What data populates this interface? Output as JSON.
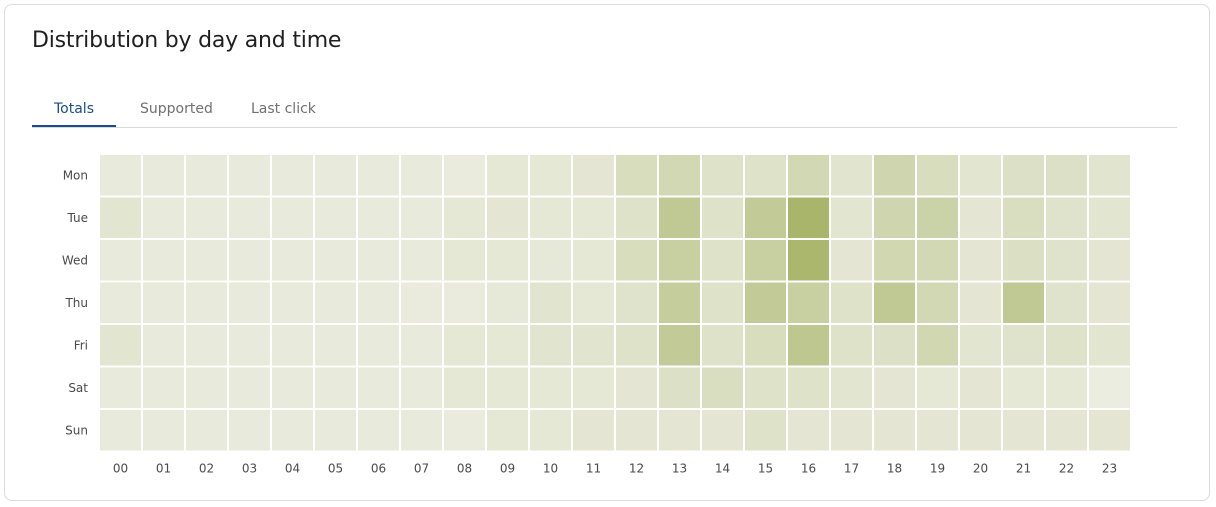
{
  "card": {
    "title": "Distribution by day and time"
  },
  "tabs": [
    {
      "label": "Totals",
      "active": true
    },
    {
      "label": "Supported",
      "active": false
    },
    {
      "label": "Last click",
      "active": false
    }
  ],
  "colors": {
    "accent": "#1a4d8f",
    "heat_low": "#eeefe5",
    "heat_high": "#a4b263"
  },
  "chart_data": {
    "type": "heatmap",
    "rows": [
      "Mon",
      "Tue",
      "Wed",
      "Thu",
      "Fri",
      "Sat",
      "Sun"
    ],
    "columns": [
      "00",
      "01",
      "02",
      "03",
      "04",
      "05",
      "06",
      "07",
      "08",
      "09",
      "10",
      "11",
      "12",
      "13",
      "14",
      "15",
      "16",
      "17",
      "18",
      "19",
      "20",
      "21",
      "22",
      "23"
    ],
    "intensity_scale": [
      0,
      1
    ],
    "values": [
      [
        0.08,
        0.08,
        0.08,
        0.08,
        0.08,
        0.08,
        0.08,
        0.08,
        0.06,
        0.12,
        0.12,
        0.14,
        0.3,
        0.38,
        0.22,
        0.22,
        0.38,
        0.18,
        0.42,
        0.3,
        0.16,
        0.24,
        0.24,
        0.18
      ],
      [
        0.16,
        0.08,
        0.08,
        0.08,
        0.08,
        0.08,
        0.08,
        0.08,
        0.12,
        0.14,
        0.12,
        0.12,
        0.22,
        0.62,
        0.22,
        0.6,
        0.95,
        0.16,
        0.42,
        0.48,
        0.14,
        0.28,
        0.2,
        0.16
      ],
      [
        0.08,
        0.08,
        0.08,
        0.08,
        0.08,
        0.08,
        0.08,
        0.08,
        0.12,
        0.12,
        0.1,
        0.12,
        0.3,
        0.52,
        0.22,
        0.52,
        0.92,
        0.14,
        0.4,
        0.38,
        0.14,
        0.26,
        0.2,
        0.14
      ],
      [
        0.08,
        0.08,
        0.08,
        0.08,
        0.08,
        0.08,
        0.08,
        0.06,
        0.06,
        0.1,
        0.18,
        0.12,
        0.2,
        0.56,
        0.22,
        0.6,
        0.52,
        0.22,
        0.62,
        0.38,
        0.14,
        0.62,
        0.2,
        0.14
      ],
      [
        0.16,
        0.08,
        0.08,
        0.08,
        0.08,
        0.08,
        0.08,
        0.08,
        0.12,
        0.12,
        0.18,
        0.18,
        0.22,
        0.6,
        0.22,
        0.3,
        0.66,
        0.22,
        0.24,
        0.4,
        0.16,
        0.2,
        0.22,
        0.16
      ],
      [
        0.08,
        0.08,
        0.08,
        0.08,
        0.08,
        0.08,
        0.08,
        0.08,
        0.12,
        0.12,
        0.12,
        0.12,
        0.14,
        0.24,
        0.28,
        0.22,
        0.22,
        0.16,
        0.14,
        0.12,
        0.14,
        0.12,
        0.12,
        0.04
      ],
      [
        0.08,
        0.08,
        0.08,
        0.08,
        0.08,
        0.08,
        0.08,
        0.08,
        0.06,
        0.12,
        0.12,
        0.14,
        0.14,
        0.14,
        0.14,
        0.22,
        0.14,
        0.14,
        0.14,
        0.14,
        0.14,
        0.14,
        0.14,
        0.14
      ]
    ]
  }
}
